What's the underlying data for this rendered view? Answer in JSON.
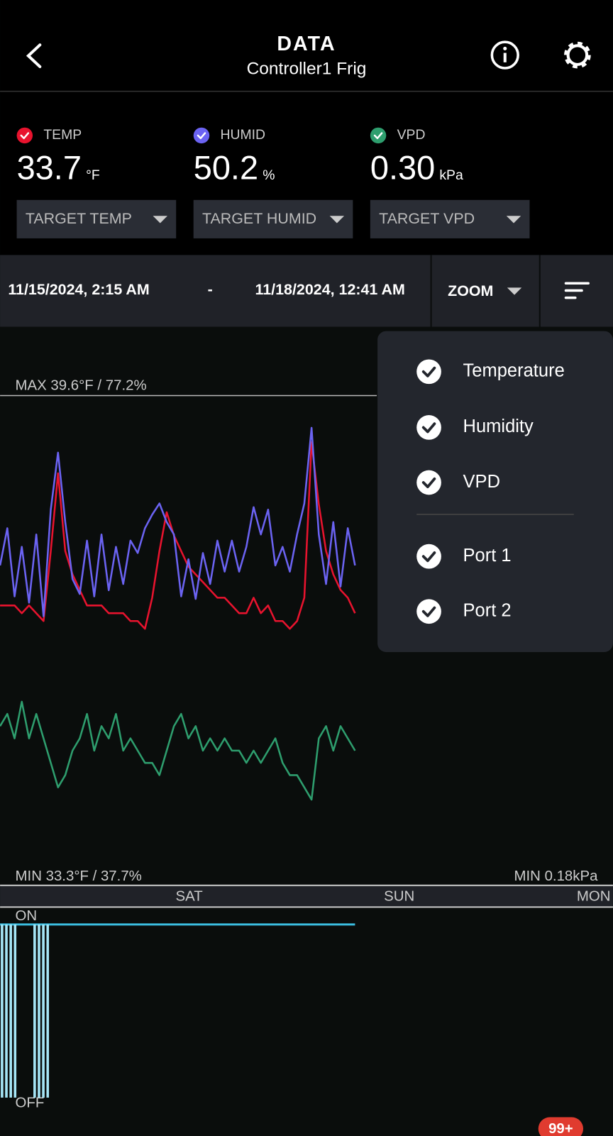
{
  "header": {
    "title": "DATA",
    "subtitle": "Controller1 Frig"
  },
  "readings": [
    {
      "label": "TEMP",
      "value": "33.7",
      "unit": "°F",
      "target": "TARGET TEMP",
      "color": "#e8132e"
    },
    {
      "label": "HUMID",
      "value": "50.2",
      "unit": "%",
      "target": "TARGET HUMID",
      "color": "#6b63f2"
    },
    {
      "label": "VPD",
      "value": "0.30",
      "unit": "kPa",
      "target": "TARGET VPD",
      "color": "#2e9e6e"
    }
  ],
  "range": {
    "start": "11/15/2024, 2:15 AM",
    "separator": "-",
    "end": "11/18/2024, 12:41 AM",
    "zoom": "ZOOM"
  },
  "menu": {
    "items": [
      "Temperature",
      "Humidity",
      "VPD",
      "Port 1",
      "Port 2"
    ]
  },
  "chart_data": {
    "type": "line",
    "max_label": "MAX 39.6°F / 77.2%",
    "min_label": "MIN 33.3°F / 37.7%",
    "min_vpd_label": "MIN 0.18kPa",
    "x_labels": [
      "SAT",
      "SUN",
      "MON"
    ],
    "port_on": "ON",
    "port_off": "OFF",
    "series": [
      {
        "color": "#e8132e",
        "ylim": [
          33.3,
          39.6
        ],
        "values": [
          36.9,
          36.9,
          36.9,
          36.8,
          36.9,
          36.8,
          36.7,
          37.6,
          38.6,
          37.6,
          37.3,
          37.1,
          36.9,
          36.9,
          36.9,
          36.8,
          36.8,
          36.8,
          36.7,
          36.7,
          36.6,
          37.0,
          37.6,
          38.1,
          37.8,
          37.6,
          37.4,
          37.3,
          37.2,
          37.1,
          37.0,
          37.0,
          36.9,
          36.8,
          36.8,
          37.0,
          36.8,
          36.9,
          36.7,
          36.7,
          36.6,
          36.7,
          37.0,
          39.0,
          38.2,
          37.6,
          37.3,
          37.1,
          37.0,
          36.8
        ]
      },
      {
        "color": "#6b63f2",
        "ylim": [
          37.7,
          77.2
        ],
        "values": [
          63.5,
          66.5,
          61.0,
          65.0,
          60.5,
          66.0,
          59.4,
          68.0,
          72.6,
          67.0,
          62.4,
          61.2,
          65.5,
          61.0,
          66.0,
          61.5,
          65.0,
          62.0,
          65.5,
          64.5,
          66.5,
          67.6,
          68.5,
          67.0,
          66.0,
          61.0,
          64.0,
          60.8,
          64.5,
          62.0,
          65.5,
          63.0,
          65.5,
          63.0,
          65.0,
          68.2,
          66.0,
          68.0,
          63.5,
          65.0,
          63.0,
          66.0,
          68.5,
          74.6,
          66.0,
          62.0,
          67.0,
          61.8,
          66.5,
          63.5
        ]
      },
      {
        "color": "#2e9e6e",
        "ylim": [
          0.18,
          0.58
        ],
        "values": [
          0.31,
          0.32,
          0.3,
          0.33,
          0.3,
          0.32,
          0.3,
          0.28,
          0.26,
          0.27,
          0.29,
          0.3,
          0.32,
          0.29,
          0.31,
          0.3,
          0.32,
          0.29,
          0.3,
          0.29,
          0.28,
          0.28,
          0.27,
          0.29,
          0.31,
          0.32,
          0.3,
          0.31,
          0.29,
          0.3,
          0.29,
          0.3,
          0.29,
          0.29,
          0.28,
          0.29,
          0.28,
          0.29,
          0.3,
          0.28,
          0.27,
          0.27,
          0.26,
          0.25,
          0.3,
          0.31,
          0.29,
          0.31,
          0.3,
          0.29
        ]
      }
    ]
  },
  "notification_badge": "99+"
}
